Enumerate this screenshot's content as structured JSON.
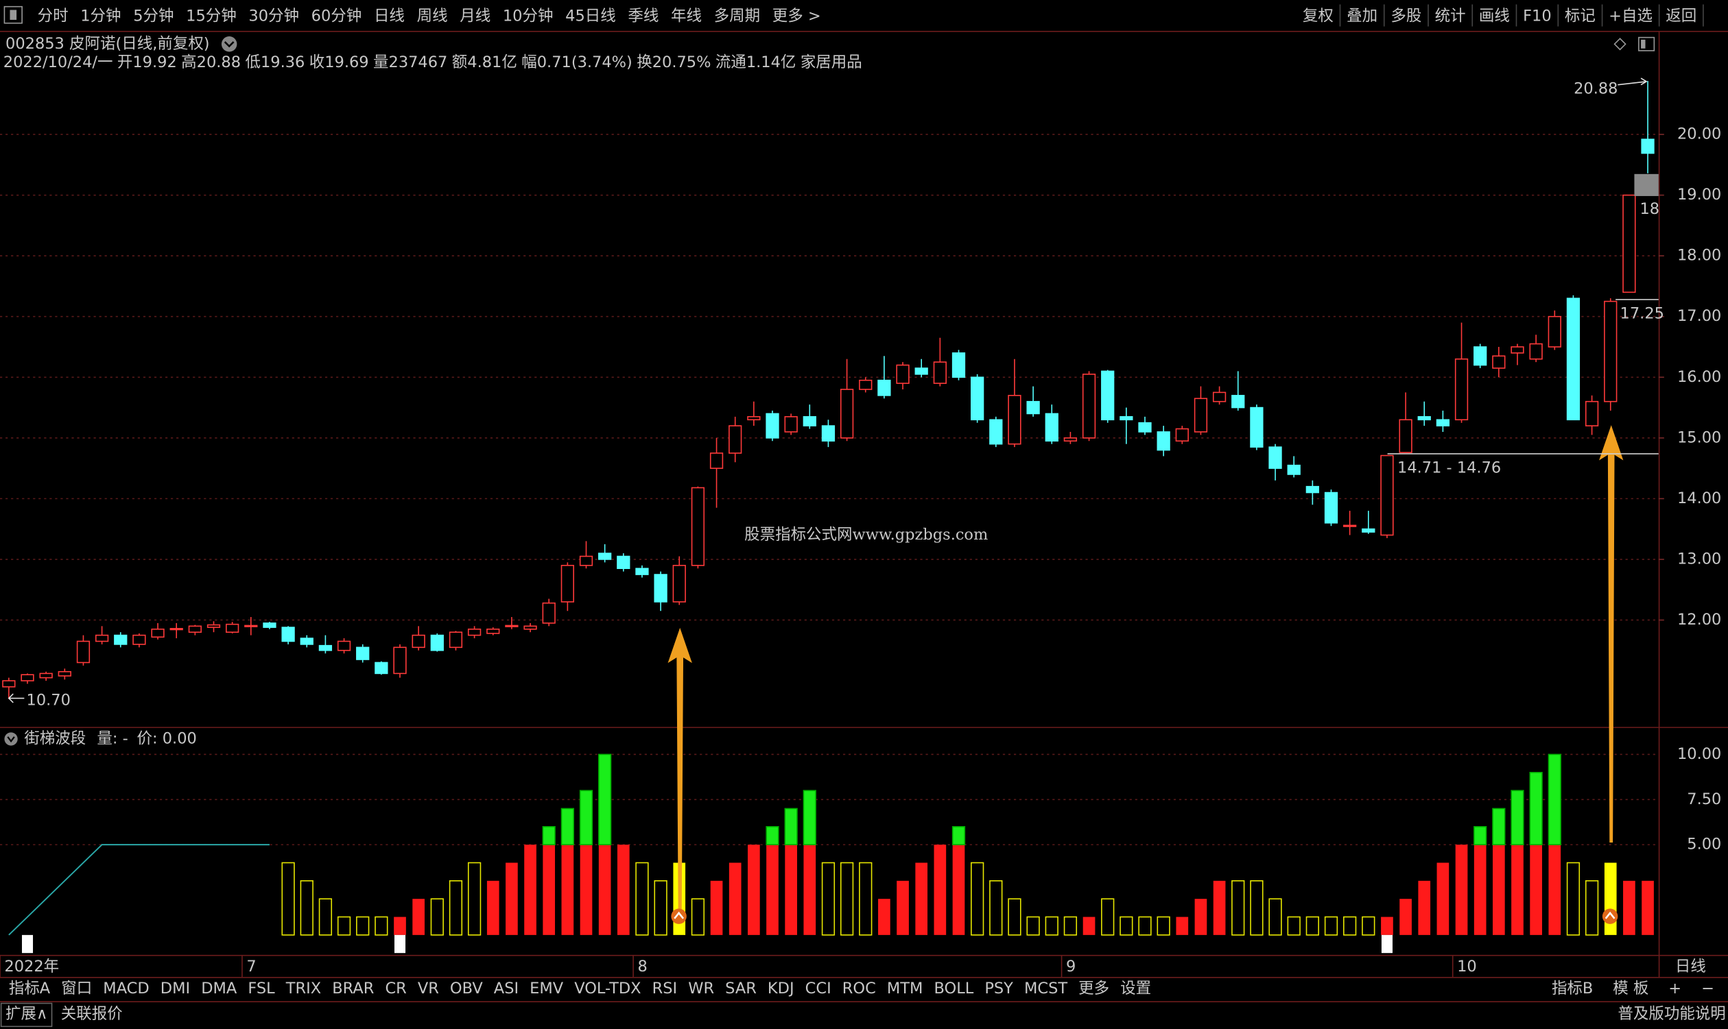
{
  "toolbar": {
    "left": [
      "分时",
      "1分钟",
      "5分钟",
      "15分钟",
      "30分钟",
      "60分钟",
      {
        "label": "日线",
        "active": true
      },
      "周线",
      "月线",
      "10分钟",
      "45日线",
      "季线",
      "年线",
      "多周期",
      "更多 >"
    ],
    "right": [
      "复权",
      "叠加",
      "多股",
      "统计",
      "画线",
      "F10",
      "标记",
      "+自选",
      "返回"
    ]
  },
  "stock_title": "002853 皮阿诺(日线,前复权)",
  "quote": [
    {
      "text": "2022/10/24/一",
      "color": "#ffffff"
    },
    {
      "text": "开19.92",
      "color": "#ff4040"
    },
    {
      "text": "高20.88",
      "color": "#ff4040"
    },
    {
      "text": "低19.36",
      "color": "#ff4040"
    },
    {
      "text": "收19.69",
      "color": "#ff4040"
    },
    {
      "text": "量237467",
      "color": "#e6e600"
    },
    {
      "text": "额4.81亿",
      "color": "#ffffff"
    },
    {
      "text": "幅0.71(3.74%)",
      "color": "#ff4040"
    },
    {
      "text": "换20.75%",
      "color": "#ffffff"
    },
    {
      "text": "流通1.14亿",
      "color": "#ffffff"
    },
    {
      "text": "家居用品",
      "color": "#e6e600"
    }
  ],
  "watermark": "股票指标公式网www.gpzbgs.com",
  "chart_data": [
    {
      "type": "candlestick",
      "up_color": "#ff3a3a",
      "down_color": "#54ffff",
      "grid": true,
      "axis_period": "日线",
      "categories": [
        "2022年",
        null,
        null,
        null,
        null,
        null,
        null,
        null,
        null,
        null,
        null,
        null,
        null,
        "7",
        null,
        null,
        null,
        null,
        null,
        null,
        null,
        null,
        null,
        null,
        null,
        null,
        null,
        null,
        null,
        null,
        null,
        null,
        null,
        null,
        "8",
        null,
        null,
        null,
        null,
        null,
        null,
        null,
        null,
        null,
        null,
        null,
        null,
        null,
        null,
        null,
        null,
        null,
        null,
        null,
        null,
        null,
        null,
        "9",
        null,
        null,
        null,
        null,
        null,
        null,
        null,
        null,
        null,
        null,
        null,
        null,
        null,
        null,
        null,
        null,
        null,
        null,
        null,
        null,
        "10",
        null,
        null,
        null,
        null,
        null,
        null,
        null,
        null,
        null,
        null
      ],
      "open": [
        10.9,
        11.0,
        11.05,
        11.08,
        11.3,
        11.65,
        11.75,
        11.6,
        11.72,
        11.85,
        11.8,
        11.88,
        11.8,
        11.9,
        11.95,
        11.88,
        11.7,
        11.58,
        11.5,
        11.55,
        11.3,
        11.12,
        11.55,
        11.75,
        11.55,
        11.75,
        11.78,
        11.9,
        11.85,
        11.95,
        12.3,
        12.9,
        13.1,
        13.05,
        12.85,
        12.75,
        12.3,
        12.9,
        14.5,
        14.75,
        15.3,
        15.4,
        15.1,
        15.35,
        15.2,
        15.0,
        15.8,
        15.95,
        15.9,
        16.15,
        15.9,
        16.4,
        16.0,
        15.3,
        14.9,
        15.6,
        15.4,
        14.95,
        15.0,
        16.1,
        15.35,
        15.25,
        15.1,
        14.95,
        15.1,
        15.6,
        15.7,
        15.5,
        14.85,
        14.55,
        14.2,
        14.1,
        13.55,
        13.5,
        13.4,
        14.76,
        15.35,
        15.3,
        15.3,
        16.5,
        16.15,
        16.4,
        16.3,
        16.5,
        17.3,
        15.2,
        15.6,
        17.4,
        19.92
      ],
      "high": [
        11.05,
        11.12,
        11.15,
        11.2,
        11.75,
        11.9,
        11.8,
        11.78,
        11.95,
        11.95,
        11.92,
        11.98,
        11.97,
        12.05,
        11.97,
        11.9,
        11.75,
        11.75,
        11.7,
        11.6,
        11.32,
        11.6,
        11.9,
        11.78,
        11.82,
        11.9,
        11.88,
        12.05,
        11.95,
        12.35,
        12.95,
        13.3,
        13.25,
        13.1,
        12.9,
        12.8,
        13.05,
        14.2,
        15.0,
        15.35,
        15.6,
        15.45,
        15.4,
        15.55,
        15.3,
        16.3,
        16.0,
        16.35,
        16.25,
        16.3,
        16.65,
        16.45,
        16.05,
        15.35,
        16.3,
        15.85,
        15.55,
        15.1,
        16.1,
        16.12,
        15.5,
        15.35,
        15.2,
        15.2,
        15.85,
        15.85,
        16.1,
        15.55,
        14.9,
        14.7,
        14.3,
        14.15,
        13.8,
        13.8,
        14.71,
        15.75,
        15.6,
        15.45,
        16.9,
        16.55,
        16.5,
        16.55,
        16.7,
        17.1,
        17.35,
        15.7,
        17.3,
        19.0,
        20.88
      ],
      "low": [
        10.7,
        10.95,
        11.0,
        11.02,
        11.25,
        11.6,
        11.55,
        11.55,
        11.68,
        11.7,
        11.75,
        11.8,
        11.78,
        11.75,
        11.85,
        11.6,
        11.55,
        11.45,
        11.45,
        11.3,
        11.1,
        11.05,
        11.5,
        11.48,
        11.5,
        11.7,
        11.75,
        11.85,
        11.8,
        11.9,
        12.15,
        12.85,
        12.95,
        12.8,
        12.7,
        12.15,
        12.25,
        12.85,
        13.85,
        14.6,
        15.2,
        14.95,
        15.05,
        15.15,
        14.85,
        14.95,
        15.75,
        15.65,
        15.8,
        16.0,
        15.85,
        15.95,
        15.25,
        14.85,
        14.85,
        15.35,
        14.9,
        14.9,
        14.95,
        15.25,
        14.9,
        15.05,
        14.7,
        14.9,
        15.05,
        15.55,
        15.45,
        14.8,
        14.3,
        14.35,
        13.9,
        13.55,
        13.4,
        13.42,
        13.35,
        14.76,
        15.2,
        15.1,
        15.25,
        16.15,
        16.0,
        16.2,
        16.25,
        16.45,
        15.3,
        15.05,
        15.45,
        17.4,
        19.36
      ],
      "close": [
        11.0,
        11.1,
        11.12,
        11.15,
        11.65,
        11.75,
        11.6,
        11.75,
        11.85,
        11.86,
        11.9,
        11.92,
        11.93,
        11.91,
        11.88,
        11.65,
        11.6,
        11.5,
        11.65,
        11.35,
        11.12,
        11.55,
        11.75,
        11.5,
        11.8,
        11.85,
        11.85,
        11.91,
        11.9,
        12.28,
        12.9,
        13.05,
        13.0,
        12.85,
        12.75,
        12.3,
        12.9,
        14.18,
        14.75,
        15.2,
        15.35,
        15.0,
        15.35,
        15.2,
        14.95,
        15.8,
        15.95,
        15.7,
        16.2,
        16.05,
        16.25,
        16.0,
        15.3,
        14.9,
        15.7,
        15.4,
        14.95,
        15.0,
        16.05,
        15.3,
        15.3,
        15.1,
        14.8,
        15.15,
        15.65,
        15.75,
        15.5,
        14.85,
        14.5,
        14.4,
        14.1,
        13.6,
        13.56,
        13.45,
        14.71,
        15.3,
        15.3,
        15.2,
        16.3,
        16.2,
        16.35,
        16.5,
        16.55,
        17.0,
        15.3,
        15.6,
        17.25,
        19.0,
        19.69
      ],
      "ylim": [
        10.24,
        21.67
      ],
      "yticks": [
        {
          "value": 12,
          "label": "12.00"
        },
        {
          "value": 13,
          "label": "13.00"
        },
        {
          "value": 14,
          "label": "14.00"
        },
        {
          "value": 15,
          "label": "15.00"
        },
        {
          "value": 16,
          "label": "16.00"
        },
        {
          "value": 17,
          "label": "17.00"
        },
        {
          "value": 18,
          "label": "18.00"
        },
        {
          "value": 19,
          "label": "19.00"
        },
        {
          "value": 20,
          "label": "20.00"
        }
      ],
      "max_label": "20.88",
      "min_label": "10.70",
      "level_labels": [
        "17.25",
        "14.71 - 14.76"
      ],
      "cursor_label": "18"
    },
    {
      "type": "bar",
      "title": "街梯波段",
      "legend": [
        {
          "text": "量: -",
          "color": "#ff2020"
        },
        {
          "text": "价: 0.00",
          "color": "#2aa8a8"
        }
      ],
      "ylim": [
        -1.04,
        11.4
      ],
      "yticks": [
        {
          "value": 5,
          "label": "5.00"
        },
        {
          "value": 7.5,
          "label": "7.50"
        },
        {
          "value": 10,
          "label": "10.00"
        }
      ],
      "style_colors": {
        "outline": "#e6e600",
        "red": "#ff1a1a",
        "green": "#1aee1a",
        "yellow": "#ffff00"
      },
      "series": [
        {
          "values": [
            null,
            null,
            null,
            null,
            null,
            null,
            null,
            null,
            null,
            null,
            null,
            null,
            null,
            null,
            null,
            4,
            3,
            2,
            1,
            1,
            1,
            1,
            2,
            2,
            3,
            4,
            3,
            4,
            5,
            6,
            7,
            8,
            10,
            5,
            4,
            3,
            4,
            2,
            3,
            4,
            5,
            6,
            7,
            8,
            4,
            4,
            4,
            2,
            3,
            4,
            5,
            6,
            4,
            3,
            2,
            1,
            1,
            1,
            1,
            2,
            1,
            1,
            1,
            1,
            2,
            3,
            3,
            3,
            2,
            1,
            1,
            1,
            1,
            1,
            1,
            2,
            3,
            4,
            5,
            6,
            7,
            8,
            9,
            10,
            4,
            3,
            4,
            3,
            3
          ],
          "styles": [
            null,
            null,
            null,
            null,
            null,
            null,
            null,
            null,
            null,
            null,
            null,
            null,
            null,
            null,
            null,
            "outline",
            "outline",
            "outline",
            "outline",
            "outline",
            "outline",
            "red",
            "red",
            "outline",
            "outline",
            "outline",
            "red",
            "red",
            "red",
            "green",
            "green",
            "green",
            "green",
            "red",
            "outline",
            "outline",
            "yellow",
            "outline",
            "red",
            "red",
            "red",
            "green",
            "green",
            "green",
            "outline",
            "outline",
            "outline",
            "red",
            "red",
            "red",
            "red",
            "green",
            "outline",
            "outline",
            "outline",
            "outline",
            "outline",
            "outline",
            "red",
            "outline",
            "outline",
            "outline",
            "outline",
            "red",
            "red",
            "red",
            "outline",
            "outline",
            "outline",
            "outline",
            "outline",
            "outline",
            "outline",
            "outline",
            "red",
            "red",
            "red",
            "red",
            "red",
            "green",
            "green",
            "green",
            "green",
            "green",
            "outline",
            "outline",
            "yellow",
            "red",
            "red"
          ]
        },
        {
          "color": "#2aa8a8",
          "values": [
            0,
            1,
            2,
            3,
            4,
            5,
            5,
            5,
            5,
            5,
            5,
            5,
            5,
            5,
            5,
            null,
            null,
            null,
            null,
            null,
            null,
            null,
            null,
            null,
            null,
            null,
            null,
            null,
            null,
            null,
            null,
            null,
            null,
            null,
            null,
            null,
            null,
            null,
            null,
            null,
            null,
            null,
            null,
            null,
            null,
            null,
            null,
            null,
            null,
            null,
            null,
            null,
            null,
            null,
            null,
            null,
            null,
            null,
            null,
            null,
            null,
            null,
            null,
            null,
            null,
            null,
            null,
            null,
            null,
            null,
            null,
            null,
            null,
            null,
            null,
            null,
            null,
            null,
            null,
            null,
            null,
            null,
            null,
            null,
            null,
            null,
            null,
            null,
            null
          ]
        },
        {
          "color": "#ffffff",
          "values": [
            null,
            -1,
            null,
            null,
            null,
            null,
            null,
            null,
            null,
            null,
            null,
            null,
            null,
            null,
            null,
            null,
            null,
            null,
            null,
            null,
            null,
            -1,
            null,
            null,
            null,
            null,
            null,
            null,
            null,
            null,
            null,
            null,
            null,
            null,
            null,
            null,
            null,
            null,
            null,
            null,
            null,
            null,
            null,
            null,
            null,
            null,
            null,
            null,
            null,
            null,
            null,
            null,
            null,
            null,
            null,
            null,
            null,
            null,
            null,
            null,
            null,
            null,
            null,
            null,
            null,
            null,
            null,
            null,
            null,
            null,
            null,
            null,
            null,
            null,
            -1,
            null,
            null,
            null,
            null,
            null,
            null,
            null,
            null,
            null,
            null,
            null,
            null,
            null,
            null
          ]
        }
      ]
    }
  ],
  "bottom_tabs": {
    "left": [
      "指标A",
      "窗口",
      "MACD",
      "DMI",
      "DMA",
      "FSL",
      "TRIX",
      "BRAR",
      "CR",
      "VR",
      "OBV",
      "ASI",
      "EMV",
      "VOL-TDX",
      "RSI",
      "WR",
      "SAR",
      "KDJ",
      "CCI",
      "ROC",
      "MTM",
      "BOLL",
      "PSY",
      "MCST",
      "更多",
      {
        "label": "设置",
        "active": true
      }
    ],
    "right": [
      "指标B",
      "模 板",
      "+",
      "−"
    ]
  },
  "status_bar": {
    "left": [
      "扩展∧",
      "关联报价"
    ],
    "right": "普及版功能说明"
  }
}
